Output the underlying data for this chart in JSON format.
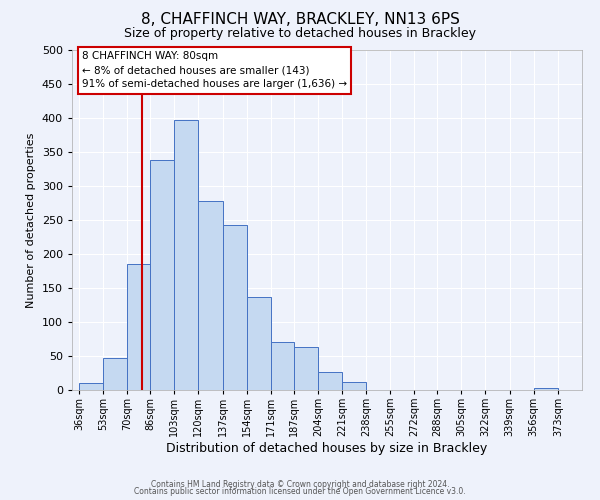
{
  "title": "8, CHAFFINCH WAY, BRACKLEY, NN13 6PS",
  "subtitle": "Size of property relative to detached houses in Brackley",
  "xlabel": "Distribution of detached houses by size in Brackley",
  "ylabel": "Number of detached properties",
  "bar_values": [
    10,
    47,
    185,
    338,
    397,
    278,
    242,
    137,
    70,
    63,
    26,
    12,
    0,
    0,
    0,
    0,
    0,
    0,
    0,
    3
  ],
  "bin_labels": [
    "36sqm",
    "53sqm",
    "70sqm",
    "86sqm",
    "103sqm",
    "120sqm",
    "137sqm",
    "154sqm",
    "171sqm",
    "187sqm",
    "204sqm",
    "221sqm",
    "238sqm",
    "255sqm",
    "272sqm",
    "288sqm",
    "305sqm",
    "322sqm",
    "339sqm",
    "356sqm",
    "373sqm"
  ],
  "bin_edges": [
    36,
    53,
    70,
    86,
    103,
    120,
    137,
    154,
    171,
    187,
    204,
    221,
    238,
    255,
    272,
    288,
    305,
    322,
    339,
    356,
    373
  ],
  "bar_color": "#c5d9f1",
  "bar_edge_color": "#4472c4",
  "vline_x": 80,
  "vline_color": "#cc0000",
  "annotation_title": "8 CHAFFINCH WAY: 80sqm",
  "annotation_line1": "← 8% of detached houses are smaller (143)",
  "annotation_line2": "91% of semi-detached houses are larger (1,636) →",
  "annotation_box_color": "#cc0000",
  "ylim": [
    0,
    500
  ],
  "yticks": [
    0,
    50,
    100,
    150,
    200,
    250,
    300,
    350,
    400,
    450,
    500
  ],
  "footer1": "Contains HM Land Registry data © Crown copyright and database right 2024.",
  "footer2": "Contains public sector information licensed under the Open Government Licence v3.0.",
  "background_color": "#eef2fb",
  "grid_color": "#ffffff",
  "title_fontsize": 11,
  "subtitle_fontsize": 9,
  "ylabel_fontsize": 8,
  "xlabel_fontsize": 9,
  "tick_fontsize": 7,
  "footer_fontsize": 5.5
}
